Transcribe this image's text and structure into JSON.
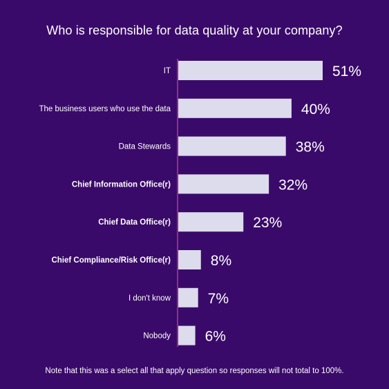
{
  "chart_data": {
    "type": "bar",
    "orientation": "horizontal",
    "title": "Who is responsible for data quality at your company?",
    "categories": [
      "IT",
      "The business users who use the data",
      "Data Stewards",
      "Chief Information Office(r)",
      "Chief Data Office(r)",
      "Chief Compliance/Risk Office(r)",
      "I don't know",
      "Nobody"
    ],
    "values": [
      51,
      40,
      38,
      32,
      23,
      8,
      7,
      6
    ],
    "value_labels": [
      "51%",
      "40%",
      "38%",
      "32%",
      "23%",
      "8%",
      "7%",
      "6%"
    ],
    "bold_categories": [
      false,
      false,
      false,
      true,
      true,
      true,
      false,
      false
    ],
    "unit": "%",
    "grid": false,
    "legend": "none",
    "note": "Note that this was a select all that apply question so responses will not total to 100%."
  },
  "colors": {
    "background": "#3a0a6a",
    "bar": "#dcdcec",
    "axis": "#b8368e",
    "text": "#ffffff"
  }
}
